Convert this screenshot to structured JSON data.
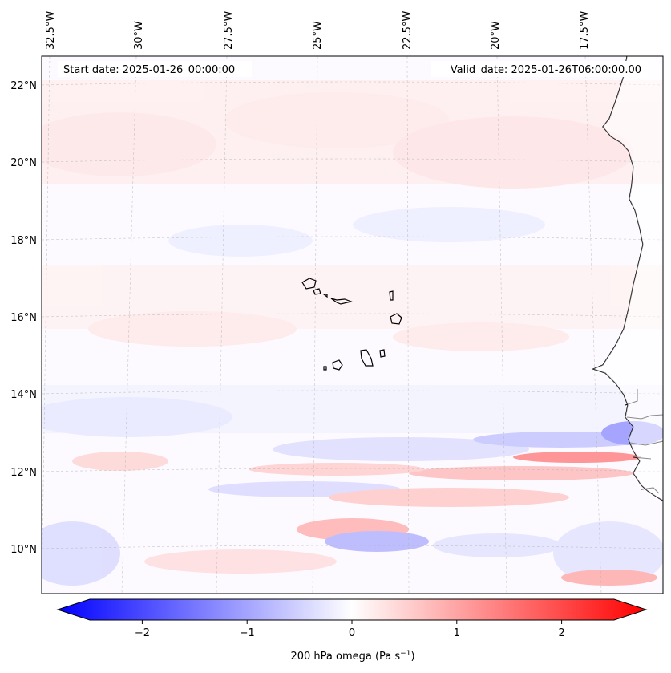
{
  "map": {
    "start_label": "Start date: 2025-01-26_00:00:00",
    "valid_label": "Valid_date: 2025-01-26T06:00:00.00",
    "lon_labels": [
      "32.5°W",
      "30°W",
      "27.5°W",
      "25°W",
      "22.5°W",
      "20°W",
      "17.5°W"
    ],
    "lat_labels": [
      "22°N",
      "20°N",
      "18°N",
      "16°N",
      "14°N",
      "12°N",
      "10°N"
    ],
    "colorbar": {
      "ticks": [
        "−2",
        "−1",
        "0",
        "1",
        "2"
      ],
      "tick_values": [
        -2,
        -1,
        0,
        1,
        2
      ],
      "range": [
        -2.5,
        2.5
      ],
      "label": "200 hPa omega (Pa s",
      "label_sup": "−1",
      "label_end": ")",
      "color_low": "#0000ff",
      "color_mid": "#ffffff",
      "color_high": "#ff0000"
    },
    "features": [
      "coastline-africa",
      "cape-verde-islands"
    ]
  }
}
